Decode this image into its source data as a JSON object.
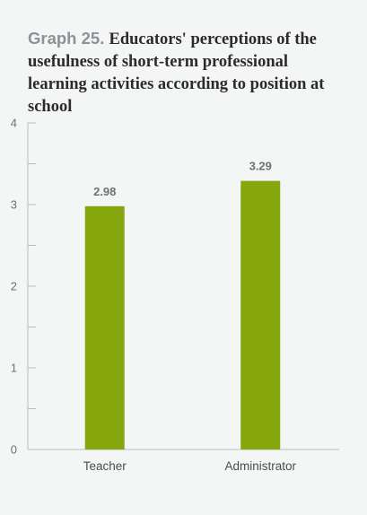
{
  "chart_data": {
    "type": "bar",
    "title_prefix": "Graph 25.",
    "title": "Educators' perceptions of the usefulness of short-term professional learning activities according to position at school",
    "categories": [
      "Teacher",
      "Administrator"
    ],
    "values": [
      2.98,
      3.29
    ],
    "value_labels": [
      "2.98",
      "3.29"
    ],
    "xlabel": "",
    "ylabel": "",
    "ylim": [
      0,
      4
    ],
    "yticks": [
      0,
      1,
      2,
      3,
      4
    ],
    "minor_yticks": [
      0.5,
      1.5,
      2.5,
      3.5
    ],
    "grid": false,
    "legend": "none",
    "bar_color": "#86a60e"
  }
}
